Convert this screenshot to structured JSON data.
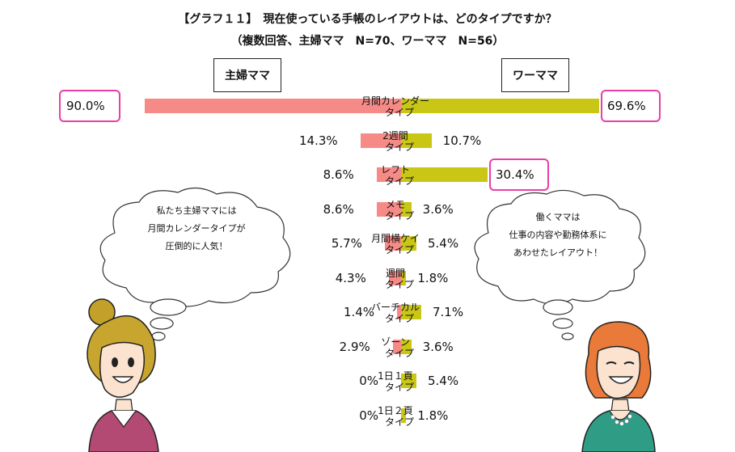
{
  "title": "【グラフ１１】　現在使っている手帳のレイアウトは、どのタイプですか？",
  "subtitle": "（複数回答、主婦ママ　N=70、ワーママ　N=56）",
  "colors": {
    "housewife": "#f58a86",
    "working": "#c9c616",
    "highlight": "#e83fa9"
  },
  "chart_data": {
    "type": "bar",
    "orientation": "horizontal-butterfly",
    "categories": [
      [
        "月間カレンダー",
        "タイプ"
      ],
      [
        "2週間",
        "タイプ"
      ],
      [
        "レフト",
        "タイプ"
      ],
      [
        "メモ",
        "タイプ"
      ],
      [
        "月間横ケイ",
        "タイプ"
      ],
      [
        "週間",
        "タイプ"
      ],
      [
        "バーチカル",
        "タイプ"
      ],
      [
        "ゾーン",
        "タイプ"
      ],
      [
        "1日１頁",
        "タイプ"
      ],
      [
        "1日２頁",
        "タイプ"
      ]
    ],
    "series": [
      {
        "name": "主婦ママ",
        "side": "left",
        "values": [
          90.0,
          14.3,
          8.6,
          8.6,
          5.7,
          4.3,
          1.4,
          2.9,
          0,
          0
        ],
        "labels": [
          "90.0%",
          "14.3%",
          "8.6%",
          "8.6%",
          "5.7%",
          "4.3%",
          "1.4%",
          "2.9%",
          "0%",
          "0%"
        ]
      },
      {
        "name": "ワーママ",
        "side": "right",
        "values": [
          69.6,
          10.7,
          30.4,
          3.6,
          5.4,
          1.8,
          7.1,
          3.6,
          5.4,
          1.8
        ],
        "labels": [
          "69.6%",
          "10.7%",
          "30.4%",
          "3.6%",
          "5.4%",
          "1.8%",
          "7.1%",
          "3.6%",
          "5.4%",
          "1.8%"
        ]
      }
    ],
    "highlighted": [
      {
        "series": 0,
        "index": 0
      },
      {
        "series": 1,
        "index": 0
      },
      {
        "series": 1,
        "index": 2
      }
    ]
  },
  "bubbles": {
    "left": [
      "私たち主婦ママには",
      "月間カレンダータイプが",
      "圧倒的に人気！"
    ],
    "right": [
      "働くママは",
      "仕事の内容や勤務体系に",
      "あわせたレイアウト！"
    ]
  }
}
